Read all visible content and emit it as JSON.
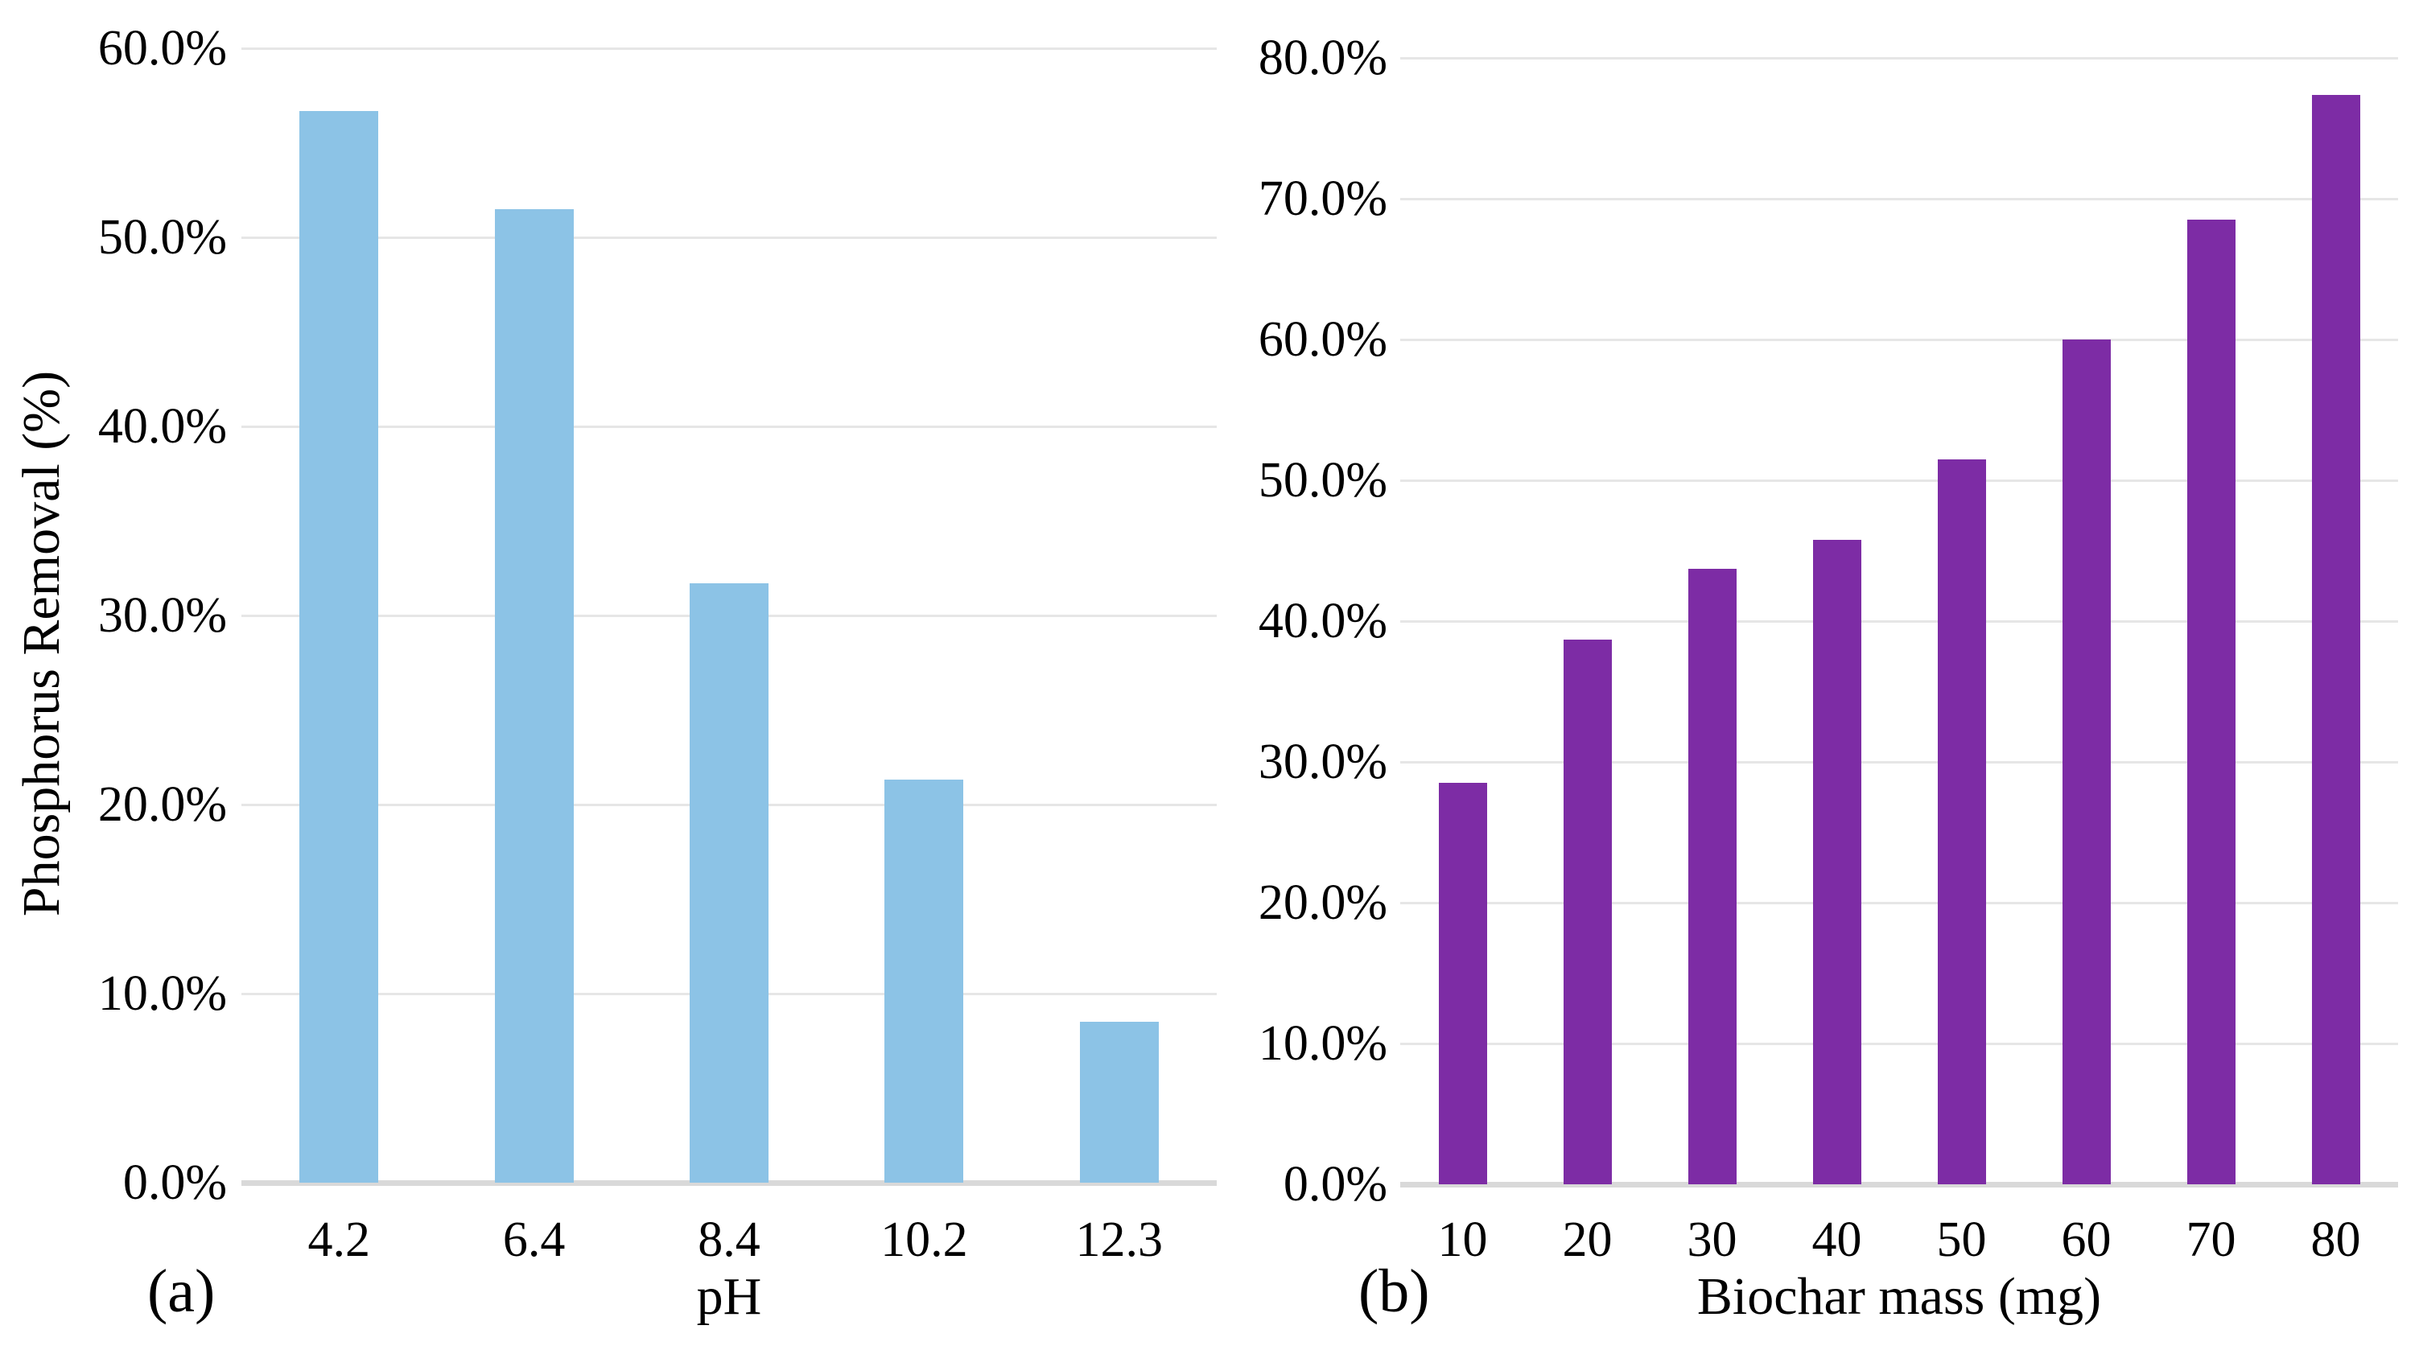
{
  "figure": {
    "background": "#ffffff",
    "text_color": "#000000",
    "gridline_color": "#E6E6E6",
    "baseline_color": "#D9D9D9"
  },
  "chart_data": [
    {
      "type": "bar",
      "panel_label": "(a)",
      "title": "",
      "categories": [
        "4.2",
        "6.4",
        "8.4",
        "10.2",
        "12.3"
      ],
      "values": [
        56.7,
        51.5,
        31.7,
        21.3,
        8.5
      ],
      "xlabel": "pH",
      "ylabel": "Phosphorus Removal (%)",
      "ylim": [
        0,
        60
      ],
      "ytick_step": 10,
      "ytick_labels": [
        "0.0%",
        "10.0%",
        "20.0%",
        "30.0%",
        "40.0%",
        "50.0%",
        "60.0%"
      ],
      "bar_color": "#8CC3E6",
      "grid": true,
      "legend": "none"
    },
    {
      "type": "bar",
      "panel_label": "(b)",
      "title": "",
      "categories": [
        "10",
        "20",
        "30",
        "40",
        "50",
        "60",
        "70",
        "80"
      ],
      "values": [
        28.5,
        38.7,
        43.7,
        45.8,
        51.5,
        60.0,
        68.5,
        77.4
      ],
      "xlabel": "Biochar mass (mg)",
      "ylabel": "",
      "ylim": [
        0,
        80
      ],
      "ytick_step": 10,
      "ytick_labels": [
        "0.0%",
        "10.0%",
        "20.0%",
        "30.0%",
        "40.0%",
        "50.0%",
        "60.0%",
        "70.0%",
        "80.0%"
      ],
      "bar_color": "#7D2CA5",
      "grid": true,
      "legend": "none"
    }
  ]
}
